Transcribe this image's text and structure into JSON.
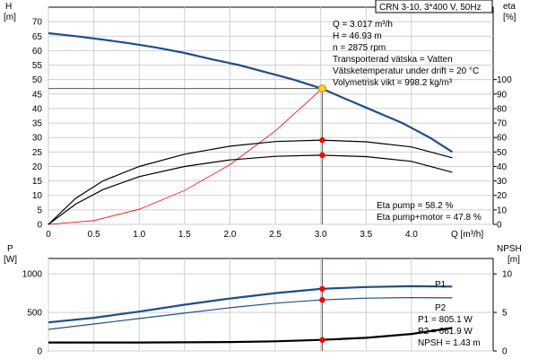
{
  "title": "CRN 3-10, 3*400 V, 50Hz",
  "info_lines": [
    "Q = 3.017 m³/h",
    "H = 46.93 m",
    "n = 2875 rpm",
    "Transporterad vätska = Vatten",
    "Vätsketemperatur under drift = 20 °C",
    "Volymetrisk vikt = 998.2 kg/m³"
  ],
  "eta_lines": [
    "Eta pump = 58.2 %",
    "Eta pump+motor = 47.8 %"
  ],
  "power_lines": [
    "P1 = 805.1 W",
    "P2 = 661.9 W",
    "NPSH = 1.43 m"
  ],
  "colors": {
    "head": "#1f4e8c",
    "system": "#ff0000",
    "eta": "#000000",
    "power": "#1f4e8c",
    "npsh": "#000000",
    "marker": "#ff0000",
    "duty": "#ffd21f"
  },
  "chart_data": [
    {
      "type": "line",
      "xlabel": "Q [m³/h]",
      "ylabel_left": "H [m]",
      "ylabel_right": "eta [%]",
      "xlim": [
        0,
        4.9
      ],
      "ylim_left": [
        0,
        75
      ],
      "ylim_right": [
        0,
        150
      ],
      "x_ticks": [
        "0",
        "0.5",
        "1.0",
        "1.5",
        "2.0",
        "2.5",
        "3.0",
        "3.5",
        "4.0"
      ],
      "y_ticks_left": [
        "0",
        "5",
        "10",
        "15",
        "20",
        "25",
        "30",
        "35",
        "40",
        "45",
        "50",
        "55",
        "60",
        "65",
        "70"
      ],
      "y_ticks_right": [
        "0",
        "10",
        "20",
        "30",
        "40",
        "50",
        "60",
        "70",
        "80",
        "90",
        "100"
      ],
      "series": [
        {
          "axis": "left",
          "x": [
            0,
            0.3,
            0.6,
            0.9,
            1.2,
            1.5,
            1.8,
            2.1,
            2.4,
            2.7,
            3.0,
            3.3,
            3.6,
            3.9,
            4.2,
            4.45
          ],
          "y": [
            66,
            65,
            63.8,
            62.5,
            61,
            59.2,
            57,
            55,
            52.5,
            50,
            47,
            43,
            39,
            35,
            30,
            25
          ]
        },
        {
          "axis": "left",
          "x": [
            0,
            0.5,
            1.0,
            1.5,
            2.0,
            2.5,
            3.017
          ],
          "y": [
            0,
            1.3,
            5.2,
            11.7,
            20.6,
            32.3,
            46.93
          ]
        },
        {
          "axis": "right",
          "x": [
            0,
            0.3,
            0.6,
            1.0,
            1.5,
            2.0,
            2.5,
            3.0,
            3.5,
            4.0,
            4.45
          ],
          "y": [
            0,
            18,
            30,
            40,
            48.5,
            54,
            57.2,
            58.2,
            57,
            53.5,
            46
          ]
        },
        {
          "axis": "right",
          "x": [
            0,
            0.3,
            0.6,
            1.0,
            1.5,
            2.0,
            2.5,
            3.0,
            3.5,
            4.0,
            4.45
          ],
          "y": [
            0,
            14,
            24,
            33,
            40,
            44.5,
            47,
            47.8,
            46.8,
            43.5,
            36
          ]
        }
      ],
      "markers": [
        {
          "axis": "left",
          "x": 3.017,
          "y": 46.93
        },
        {
          "axis": "right",
          "x": 3.017,
          "y": 58.2
        },
        {
          "axis": "right",
          "x": 3.017,
          "y": 47.8
        }
      ]
    },
    {
      "type": "line",
      "ylabel_left": "P [W]",
      "ylabel_right": "NPSH [m]",
      "xlim": [
        0,
        4.9
      ],
      "ylim_left": [
        0,
        1200
      ],
      "ylim_right": [
        0,
        12
      ],
      "y_ticks_left": [
        "0",
        "500",
        "1000"
      ],
      "y_ticks_right": [
        "0",
        "5",
        "10"
      ],
      "series": [
        {
          "name": "P1",
          "axis": "left",
          "x": [
            0,
            0.5,
            1.0,
            1.5,
            2.0,
            2.5,
            3.0,
            3.5,
            4.0,
            4.45
          ],
          "y": [
            370,
            430,
            510,
            600,
            680,
            750,
            805,
            830,
            840,
            835
          ]
        },
        {
          "name": "P2",
          "axis": "left",
          "x": [
            0,
            0.5,
            1.0,
            1.5,
            2.0,
            2.5,
            3.0,
            3.5,
            4.0,
            4.45
          ],
          "y": [
            280,
            350,
            420,
            490,
            560,
            620,
            662,
            685,
            692,
            688
          ]
        },
        {
          "axis": "right",
          "x": [
            0,
            0.5,
            1.0,
            1.5,
            2.0,
            2.5,
            3.0,
            3.5,
            4.0,
            4.45
          ],
          "y": [
            1.1,
            1.1,
            1.1,
            1.12,
            1.15,
            1.25,
            1.43,
            1.7,
            2.2,
            3.0
          ]
        }
      ],
      "markers": [
        {
          "axis": "left",
          "x": 3.017,
          "y": 805
        },
        {
          "axis": "left",
          "x": 3.017,
          "y": 662
        },
        {
          "axis": "right",
          "x": 3.017,
          "y": 1.43
        }
      ]
    }
  ]
}
